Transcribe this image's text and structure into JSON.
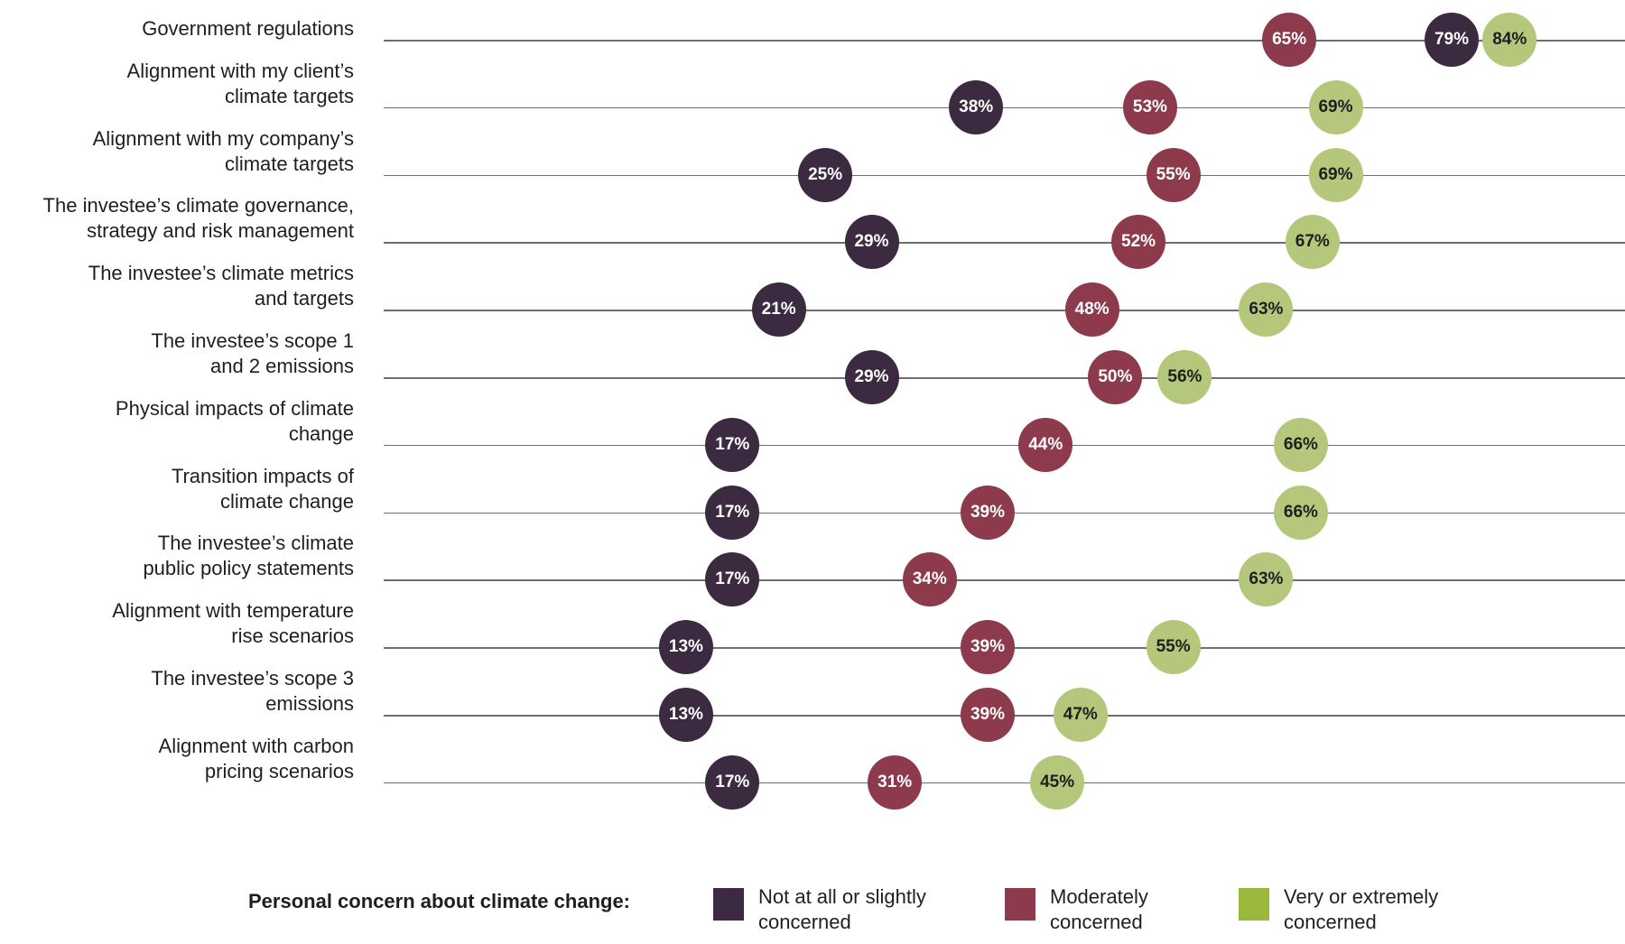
{
  "chart_data": {
    "type": "scatter",
    "title": "",
    "xlabel": "",
    "ylabel": "",
    "xlim": [
      0,
      100
    ],
    "grid": false,
    "legend_position": "bottom",
    "legend_title": "Personal concern about climate change:",
    "categories": [
      [
        "Government regulations"
      ],
      [
        "Alignment with my client’s",
        "climate targets"
      ],
      [
        "Alignment with my company’s",
        "climate targets"
      ],
      [
        "The investee’s climate governance,",
        "strategy and risk management"
      ],
      [
        "The investee’s climate metrics",
        "and targets"
      ],
      [
        "The investee’s scope 1",
        "and 2 emissions"
      ],
      [
        "Physical impacts of climate",
        "change"
      ],
      [
        "Transition impacts of",
        "climate change"
      ],
      [
        "The investee’s climate",
        "public policy statements"
      ],
      [
        "Alignment with temperature",
        "rise scenarios"
      ],
      [
        "The investee’s scope 3",
        "emissions"
      ],
      [
        "Alignment with carbon",
        "pricing scenarios"
      ]
    ],
    "series": [
      {
        "name": "Not at all or slightly concerned",
        "legend_lines": [
          "Not at all or slightly",
          "concerned"
        ],
        "color": "#3b2a40",
        "values": [
          79,
          38,
          25,
          29,
          21,
          29,
          17,
          17,
          17,
          13,
          13,
          17
        ]
      },
      {
        "name": "Moderately concerned",
        "legend_lines": [
          "Moderately",
          "concerned"
        ],
        "color": "#8c3a4c",
        "values": [
          65,
          53,
          55,
          52,
          48,
          50,
          44,
          39,
          34,
          39,
          39,
          31
        ]
      },
      {
        "name": "Very or extremely concerned",
        "legend_lines": [
          "Very or extremely",
          "concerned"
        ],
        "color": "#b5c77a",
        "legend_color": "#9ab93c",
        "values": [
          84,
          69,
          69,
          67,
          63,
          56,
          66,
          66,
          63,
          55,
          47,
          45
        ]
      }
    ]
  }
}
